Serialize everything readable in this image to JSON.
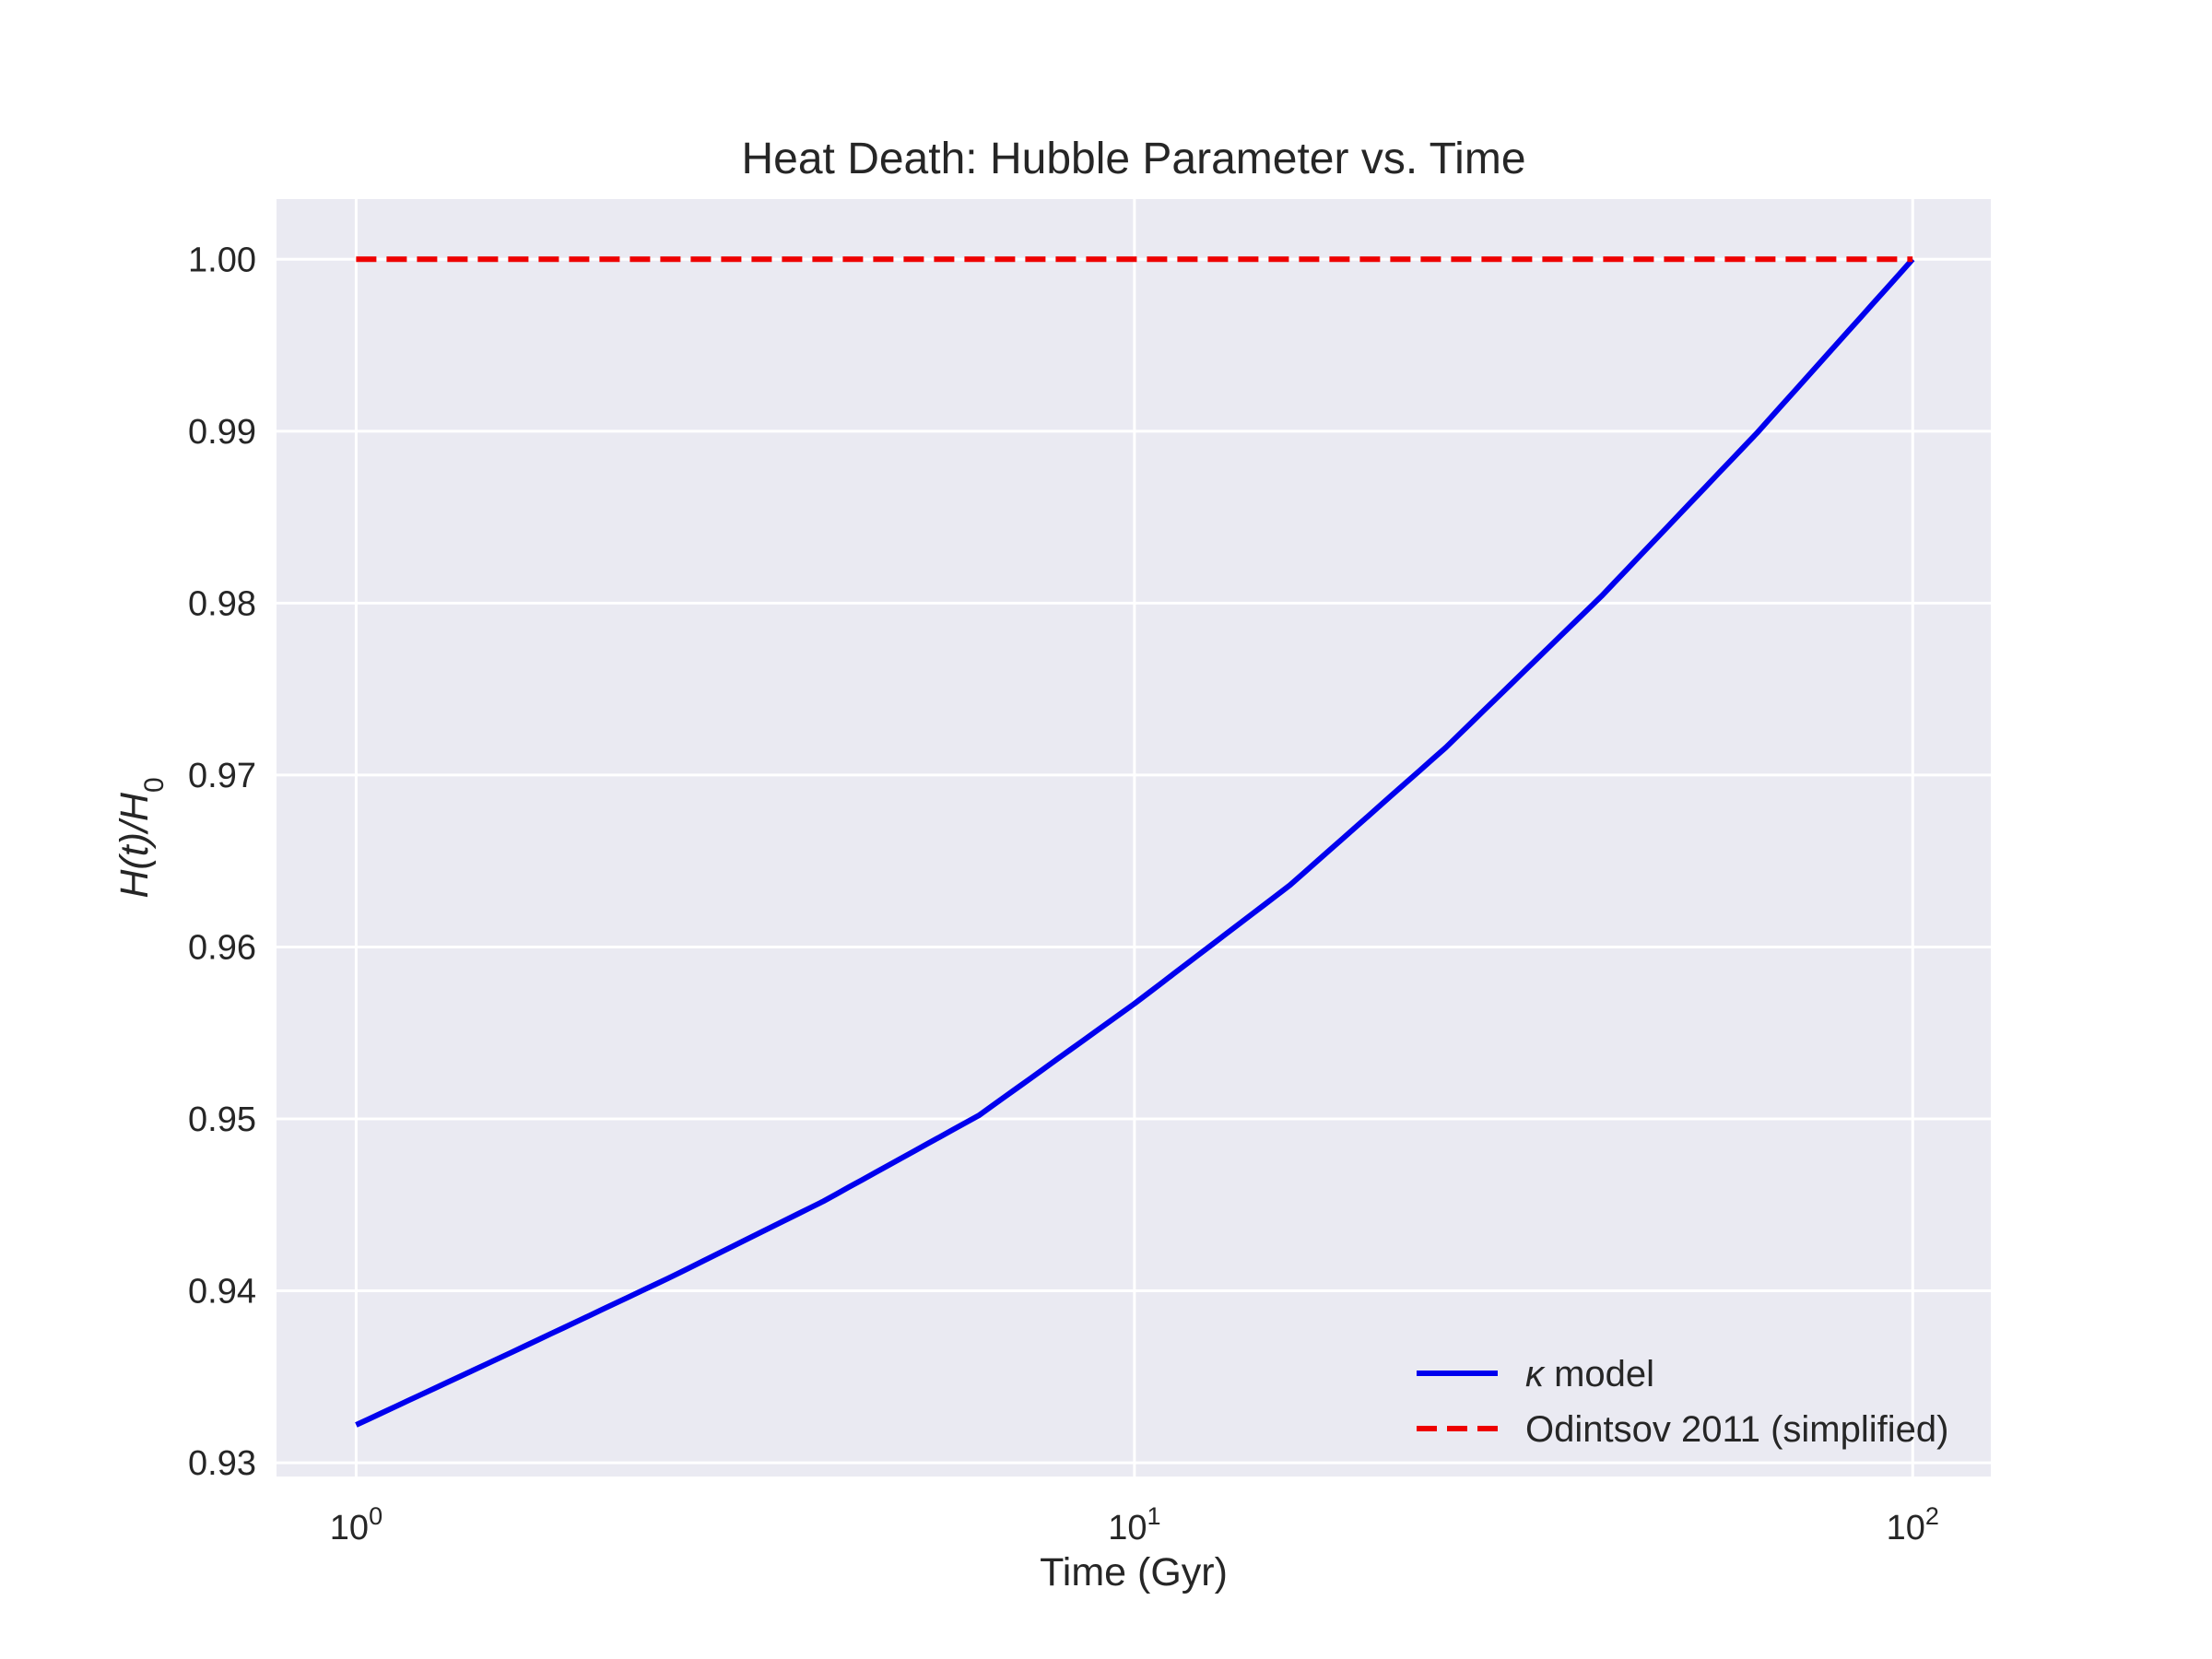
{
  "chart_data": {
    "type": "line",
    "title": "Heat Death: Hubble Parameter vs. Time",
    "xlabel": "Time (Gyr)",
    "ylabel": "H(t)/H0",
    "x_scale": "log",
    "xlim": [
      0.79,
      126
    ],
    "ylim": [
      0.9292,
      1.0035
    ],
    "x_ticks": [
      {
        "value": 1,
        "base": "10",
        "exp": "0"
      },
      {
        "value": 10,
        "base": "10",
        "exp": "1"
      },
      {
        "value": 100,
        "base": "10",
        "exp": "2"
      }
    ],
    "y_ticks": [
      {
        "value": 0.93,
        "label": "0.93"
      },
      {
        "value": 0.94,
        "label": "0.94"
      },
      {
        "value": 0.95,
        "label": "0.95"
      },
      {
        "value": 0.96,
        "label": "0.96"
      },
      {
        "value": 0.97,
        "label": "0.97"
      },
      {
        "value": 0.98,
        "label": "0.98"
      },
      {
        "value": 0.99,
        "label": "0.99"
      },
      {
        "value": 1.0,
        "label": "1.00"
      }
    ],
    "grid": true,
    "legend_position": "lower-right",
    "series": [
      {
        "name": "κ model",
        "legend_symbol": "κ",
        "legend_rest": " model",
        "color": "#0000ee",
        "style": "solid",
        "x": [
          1,
          1.58,
          2.51,
          3.98,
          6.31,
          10,
          15.85,
          25.12,
          39.81,
          63.1,
          100
        ],
        "y": [
          0.9322,
          0.9364,
          0.9407,
          0.9452,
          0.9502,
          0.9567,
          0.9636,
          0.9716,
          0.9804,
          0.9899,
          1.0
        ]
      },
      {
        "name": "Odintsov 2011 (simplified)",
        "legend_symbol": "",
        "legend_rest": "Odintsov 2011 (simplified)",
        "color": "#ee0000",
        "style": "dashed",
        "x": [
          1,
          100
        ],
        "y": [
          1.0,
          1.0
        ]
      }
    ]
  },
  "colors": {
    "plot_background": "#eaeaf2",
    "grid": "#ffffff",
    "text": "#262626"
  }
}
